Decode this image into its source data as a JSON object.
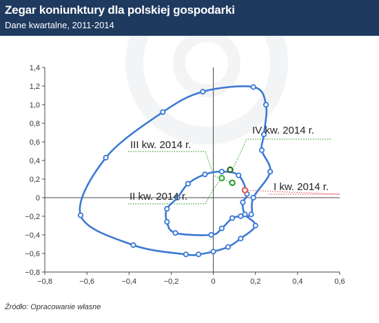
{
  "header": {
    "title": "Zegar koniunktury dla polskiej gospodarki",
    "subtitle": "Dane kwartalne, 2011-2014"
  },
  "footer": {
    "source": "Źródło: Opracowanie własne"
  },
  "colors": {
    "header_bg": "#1f3a5f",
    "line": "#3a78d4",
    "marker_fill": "#ffffff",
    "q1_2014": "#e05a5a",
    "q2_2014": "#3fae3f",
    "q3_2014": "#2e9a2e",
    "q4_2014": "#1f6a1f",
    "annotation_dotted": "#3aa63a",
    "annotation_dotted_red": "#e05a5a"
  },
  "chart_data": {
    "type": "line",
    "xlim": [
      -0.8,
      0.6
    ],
    "ylim": [
      -0.8,
      1.4
    ],
    "xticks": [
      -0.8,
      -0.6,
      -0.4,
      -0.2,
      0,
      0.2,
      0.4,
      0.6
    ],
    "yticks": [
      -0.8,
      -0.6,
      -0.4,
      -0.2,
      0,
      0.2,
      0.4,
      0.6,
      0.8,
      1.0,
      1.2,
      1.4
    ],
    "xtick_labels": [
      "−0,8",
      "−0,6",
      "−0,4",
      "−0,2",
      "0",
      "0,2",
      "0,4",
      "0,6"
    ],
    "ytick_labels": [
      "−0,8",
      "−0,6",
      "−0,4",
      "−0,2",
      "0",
      "0,2",
      "0,4",
      "0,6",
      "0,8",
      "1,0",
      "1,2",
      "1,4"
    ],
    "grid": false,
    "series": [
      {
        "points": [
          [
            0.19,
            1.19
          ],
          [
            0.25,
            1.0
          ],
          [
            0.24,
            0.68
          ],
          [
            0.23,
            0.51
          ],
          [
            0.27,
            0.28
          ],
          [
            0.19,
            0.0
          ],
          [
            0.18,
            -0.18
          ],
          [
            0.13,
            -0.2
          ],
          [
            0.09,
            -0.22
          ],
          [
            0.04,
            -0.33
          ],
          [
            -0.01,
            -0.4
          ],
          [
            -0.18,
            -0.38
          ],
          [
            -0.22,
            -0.26
          ],
          [
            -0.22,
            -0.12
          ],
          [
            -0.17,
            0.0
          ],
          [
            -0.12,
            0.15
          ],
          [
            -0.04,
            0.25
          ],
          [
            0.04,
            0.28
          ],
          [
            0.12,
            0.24
          ],
          [
            0.16,
            0.04
          ],
          [
            0.14,
            -0.05
          ],
          [
            0.15,
            -0.18
          ],
          [
            0.2,
            -0.3
          ],
          [
            0.13,
            -0.44
          ],
          [
            0.07,
            -0.53
          ],
          [
            0.0,
            -0.58
          ],
          [
            -0.07,
            -0.61
          ],
          [
            -0.13,
            -0.61
          ],
          [
            -0.38,
            -0.51
          ],
          [
            -0.63,
            -0.19
          ],
          [
            -0.51,
            0.43
          ],
          [
            -0.24,
            0.92
          ],
          [
            -0.05,
            1.14
          ]
        ],
        "closed": true
      }
    ],
    "highlight_points": [
      {
        "label": "I kw. 2014 r.",
        "x": 0.15,
        "y": 0.08
      },
      {
        "label": "II kw. 2014 r.",
        "x": 0.04,
        "y": 0.21
      },
      {
        "label": "III kw. 2014 r.",
        "x": 0.09,
        "y": 0.16
      },
      {
        "label": "IV kw. 2014 r.",
        "x": 0.08,
        "y": 0.3
      }
    ]
  }
}
